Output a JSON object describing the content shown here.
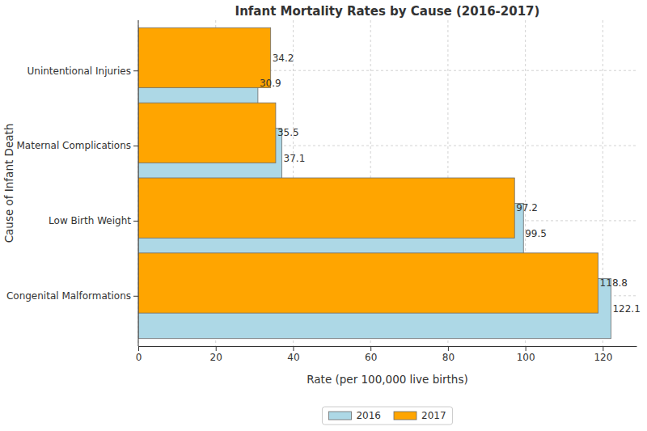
{
  "chart_data": {
    "type": "bar",
    "orientation": "horizontal",
    "title": "Infant Mortality Rates by Cause (2016-2017)",
    "x_label": "Rate (per 100,000 live births)",
    "y_label": "Cause of Infant Death",
    "categories": [
      "Congenital Malformations",
      "Low Birth Weight",
      "Maternal Complications",
      "Unintentional Injuries"
    ],
    "series": [
      {
        "name": "2016",
        "color": "#add8e6",
        "values": [
          122.1,
          99.5,
          37.1,
          30.9
        ]
      },
      {
        "name": "2017",
        "color": "#ffa500",
        "values": [
          118.8,
          97.2,
          35.5,
          34.2
        ]
      }
    ],
    "xlim": [
      0,
      128.7
    ],
    "xticks": [
      0,
      20,
      40,
      60,
      80,
      100,
      120
    ],
    "grid": true,
    "legend": "bottom",
    "data_labels": true
  }
}
